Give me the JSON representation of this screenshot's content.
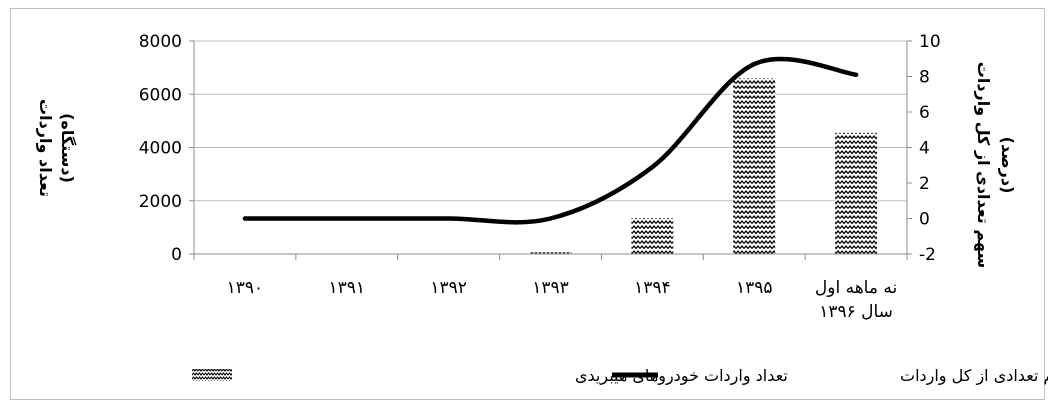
{
  "chart_data": {
    "type": "bar",
    "categories": [
      "۱۳۹۰",
      "۱۳۹۱",
      "۱۳۹۲",
      "۱۳۹۳",
      "۱۳۹۴",
      "۱۳۹۵",
      "نه ماهه اول سال ۱۳۹۶"
    ],
    "category_lines": [
      [
        "۱۳۹۰"
      ],
      [
        "۱۳۹۱"
      ],
      [
        "۱۳۹۲"
      ],
      [
        "۱۳۹۳"
      ],
      [
        "۱۳۹۴"
      ],
      [
        "۱۳۹۵"
      ],
      [
        "نه ماهه اول",
        "سال ۱۳۹۶"
      ]
    ],
    "series": [
      {
        "name": "تعداد واردات خودروهای هیبریدی",
        "type": "bar",
        "axis": "left",
        "values": [
          0,
          0,
          0,
          60,
          1350,
          6600,
          4550
        ],
        "pattern": "zigzag"
      },
      {
        "name": "سهم تعدادی از کل واردات",
        "type": "line",
        "axis": "right",
        "values": [
          0,
          0,
          0,
          0,
          2.9,
          8.7,
          8.1
        ]
      }
    ],
    "y_left": {
      "label_lines": [
        "تعداد واردات",
        "(دستگاه)"
      ],
      "ylim": [
        0,
        8000
      ],
      "ticks": [
        "0",
        "2000",
        "4000",
        "6000",
        "8000"
      ]
    },
    "y_right": {
      "label_lines": [
        "سهم تعدادی از کل واردات",
        "(درصد)"
      ],
      "ylim": [
        -2,
        10
      ],
      "ticks": [
        "-2",
        "0",
        "2",
        "4",
        "6",
        "8",
        "10"
      ]
    },
    "grid": true,
    "legend_position": "bottom",
    "colors": {
      "line": "#000000",
      "bar_pattern": "#000000",
      "grid": "#bfbfbf"
    }
  }
}
